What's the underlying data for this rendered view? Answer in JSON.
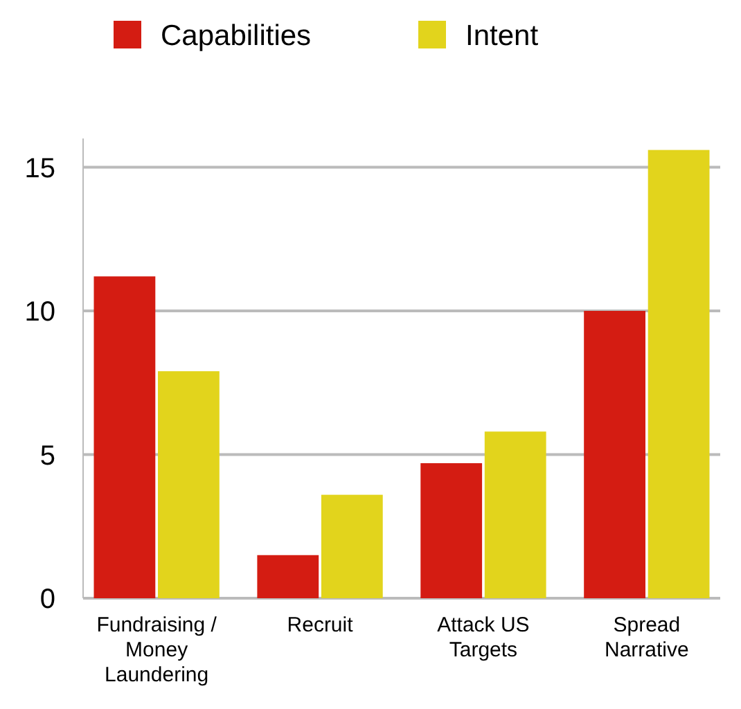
{
  "chart_data": {
    "type": "bar",
    "categories": [
      "Fundraising / Money Laundering",
      "Recruit",
      "Attack US Targets",
      "Spread Narrative"
    ],
    "series": [
      {
        "name": "Capabilities",
        "color": "#d41c12",
        "values": [
          11.2,
          1.5,
          4.7,
          10
        ]
      },
      {
        "name": "Intent",
        "color": "#e2d41c",
        "values": [
          7.9,
          3.6,
          5.8,
          15.6
        ]
      }
    ],
    "ylim": [
      0,
      16
    ],
    "yticks": [
      0,
      5,
      10,
      15
    ],
    "grid": "y",
    "legend": "top"
  }
}
